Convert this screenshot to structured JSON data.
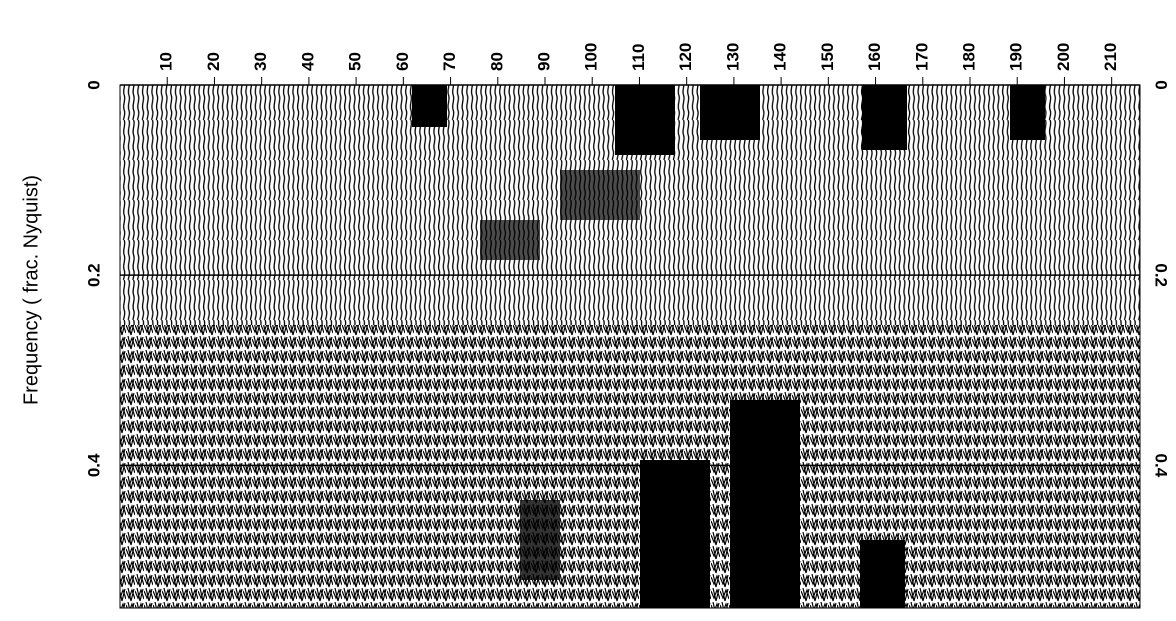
{
  "chart_data": {
    "type": "wiggle",
    "ylabel": "Frequency ( frac. Nyquist)",
    "xlim": [
      0,
      216
    ],
    "xticks": [
      10,
      20,
      30,
      40,
      50,
      60,
      70,
      80,
      90,
      100,
      110,
      120,
      130,
      140,
      150,
      160,
      170,
      180,
      190,
      200,
      210
    ],
    "ylim": [
      0,
      0.55
    ],
    "yticks": [
      0,
      0.2,
      0.4
    ],
    "grid": true
  }
}
